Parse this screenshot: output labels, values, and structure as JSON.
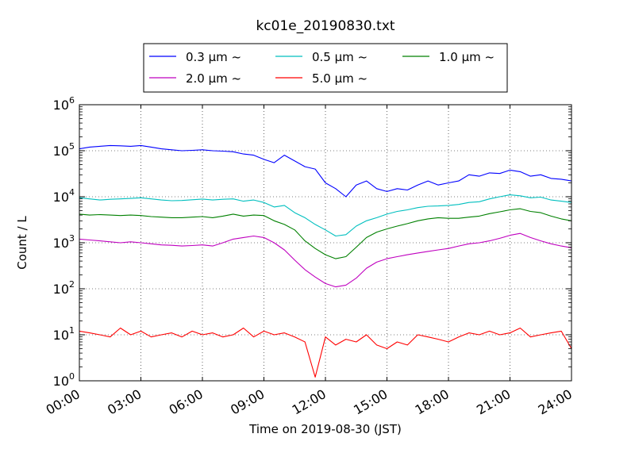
{
  "chart_data": {
    "type": "line",
    "title": "kc01e_20190830.txt",
    "xlabel": "Time on 2019-08-30 (JST)",
    "ylabel": "Count / L",
    "x_ticks": [
      "00:00",
      "03:00",
      "06:00",
      "09:00",
      "12:00",
      "15:00",
      "18:00",
      "21:00",
      "24:00"
    ],
    "xlim_hours": [
      0,
      24
    ],
    "y_scale": "log",
    "ylim": [
      1,
      1000000
    ],
    "y_ticks": [
      {
        "base": "10",
        "exp": "0"
      },
      {
        "base": "10",
        "exp": "1"
      },
      {
        "base": "10",
        "exp": "2"
      },
      {
        "base": "10",
        "exp": "3"
      },
      {
        "base": "10",
        "exp": "4"
      },
      {
        "base": "10",
        "exp": "5"
      },
      {
        "base": "10",
        "exp": "6"
      }
    ],
    "grid": true,
    "legend_position": "top-center",
    "hours": [
      0,
      0.5,
      1,
      1.5,
      2,
      2.5,
      3,
      3.5,
      4,
      4.5,
      5,
      5.5,
      6,
      6.5,
      7,
      7.5,
      8,
      8.5,
      9,
      9.5,
      10,
      10.5,
      11,
      11.5,
      12,
      12.5,
      13,
      13.5,
      14,
      14.5,
      15,
      15.5,
      16,
      16.5,
      17,
      17.5,
      18,
      18.5,
      19,
      19.5,
      20,
      20.5,
      21,
      21.5,
      22,
      22.5,
      23,
      23.5,
      24
    ],
    "series": [
      {
        "name": "0.3 μm ~",
        "color": "#0000ff",
        "values": [
          110000,
          120000,
          125000,
          130000,
          128000,
          125000,
          130000,
          120000,
          110000,
          105000,
          100000,
          102000,
          105000,
          100000,
          98000,
          95000,
          85000,
          80000,
          65000,
          55000,
          80000,
          60000,
          45000,
          40000,
          20000,
          15000,
          10000,
          18000,
          22000,
          15000,
          13000,
          15000,
          14000,
          18000,
          22000,
          18000,
          20000,
          22000,
          30000,
          28000,
          33000,
          32000,
          38000,
          35000,
          28000,
          30000,
          25000,
          24000,
          22000
        ]
      },
      {
        "name": "0.5 μm ~",
        "color": "#00bfbf",
        "values": [
          9500,
          9000,
          8500,
          8800,
          9000,
          9200,
          9500,
          9000,
          8500,
          8200,
          8300,
          8600,
          8900,
          8500,
          8800,
          9000,
          8000,
          8500,
          7500,
          6000,
          6500,
          4500,
          3500,
          2500,
          1900,
          1400,
          1500,
          2300,
          3000,
          3500,
          4200,
          4800,
          5200,
          5800,
          6200,
          6300,
          6500,
          6800,
          7500,
          7800,
          9000,
          10000,
          11000,
          10500,
          9500,
          9800,
          8500,
          8000,
          7500
        ]
      },
      {
        "name": "1.0 μm ~",
        "color": "#008000",
        "values": [
          4200,
          4000,
          4100,
          4000,
          3900,
          4000,
          3900,
          3700,
          3600,
          3500,
          3500,
          3600,
          3700,
          3500,
          3800,
          4200,
          3800,
          4000,
          3900,
          3000,
          2500,
          1900,
          1100,
          750,
          550,
          450,
          500,
          800,
          1300,
          1700,
          2000,
          2300,
          2600,
          3000,
          3300,
          3500,
          3400,
          3400,
          3600,
          3800,
          4300,
          4700,
          5200,
          5500,
          4800,
          4500,
          3800,
          3300,
          3000
        ]
      },
      {
        "name": "2.0 μm ~",
        "color": "#bf00bf",
        "values": [
          1200,
          1150,
          1100,
          1050,
          1000,
          1050,
          1000,
          950,
          900,
          880,
          850,
          870,
          900,
          850,
          1000,
          1200,
          1300,
          1400,
          1300,
          1000,
          700,
          420,
          260,
          180,
          130,
          110,
          120,
          170,
          280,
          380,
          450,
          500,
          550,
          600,
          650,
          700,
          750,
          850,
          950,
          1000,
          1100,
          1250,
          1450,
          1600,
          1300,
          1100,
          950,
          850,
          780
        ]
      },
      {
        "name": "5.0 μm ~",
        "color": "#ff0000",
        "values": [
          12,
          11,
          10,
          9,
          14,
          10,
          12,
          9,
          10,
          11,
          9,
          12,
          10,
          11,
          9,
          10,
          14,
          9,
          12,
          10,
          11,
          9,
          7,
          1.2,
          9,
          6,
          8,
          7,
          10,
          6,
          5,
          7,
          6,
          10,
          9,
          8,
          7,
          9,
          11,
          10,
          12,
          10,
          11,
          14,
          9,
          10,
          11,
          12,
          5
        ]
      }
    ]
  }
}
